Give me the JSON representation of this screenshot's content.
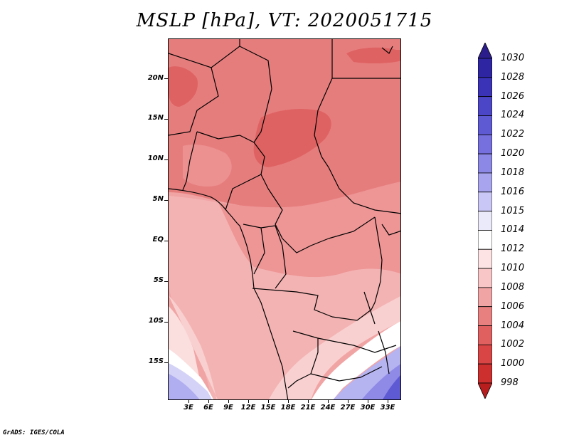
{
  "title": "MSLP [hPa], VT: 2020051715",
  "credit": "GrADS: IGES/COLA",
  "lat_labels": [
    "20N",
    "15N",
    "10N",
    "5N",
    "EQ",
    "5S",
    "10S",
    "15S"
  ],
  "lon_labels": [
    "3E",
    "6E",
    "9E",
    "12E",
    "15E",
    "18E",
    "21E",
    "24E",
    "27E",
    "30E",
    "33E"
  ],
  "colorbar": {
    "labels": [
      "1030",
      "1028",
      "1026",
      "1024",
      "1022",
      "1020",
      "1018",
      "1016",
      "1015",
      "1014",
      "1012",
      "1010",
      "1008",
      "1006",
      "1004",
      "1002",
      "1000",
      "998"
    ],
    "colors": [
      "#2b1e8c",
      "#2e25a3",
      "#3a33b8",
      "#4b45c8",
      "#5e5ad4",
      "#7570de",
      "#8c88e6",
      "#a8a5ee",
      "#c9c7f5",
      "#ebeafb",
      "#ffffff",
      "#fde3e3",
      "#f8c6c6",
      "#f1a4a4",
      "#e88080",
      "#e06060",
      "#d94545",
      "#cd2e2e",
      "#b81e1e"
    ]
  },
  "chart_data": {
    "type": "heatmap",
    "variable": "MSLP",
    "units": "hPa",
    "valid_time": "2020051715",
    "lon_range": [
      0,
      35
    ],
    "lat_range": [
      -20,
      24
    ],
    "levels": [
      998,
      1000,
      1002,
      1004,
      1006,
      1008,
      1010,
      1012,
      1014,
      1015,
      1016,
      1018,
      1020,
      1022,
      1024,
      1026,
      1028,
      1030
    ]
  }
}
